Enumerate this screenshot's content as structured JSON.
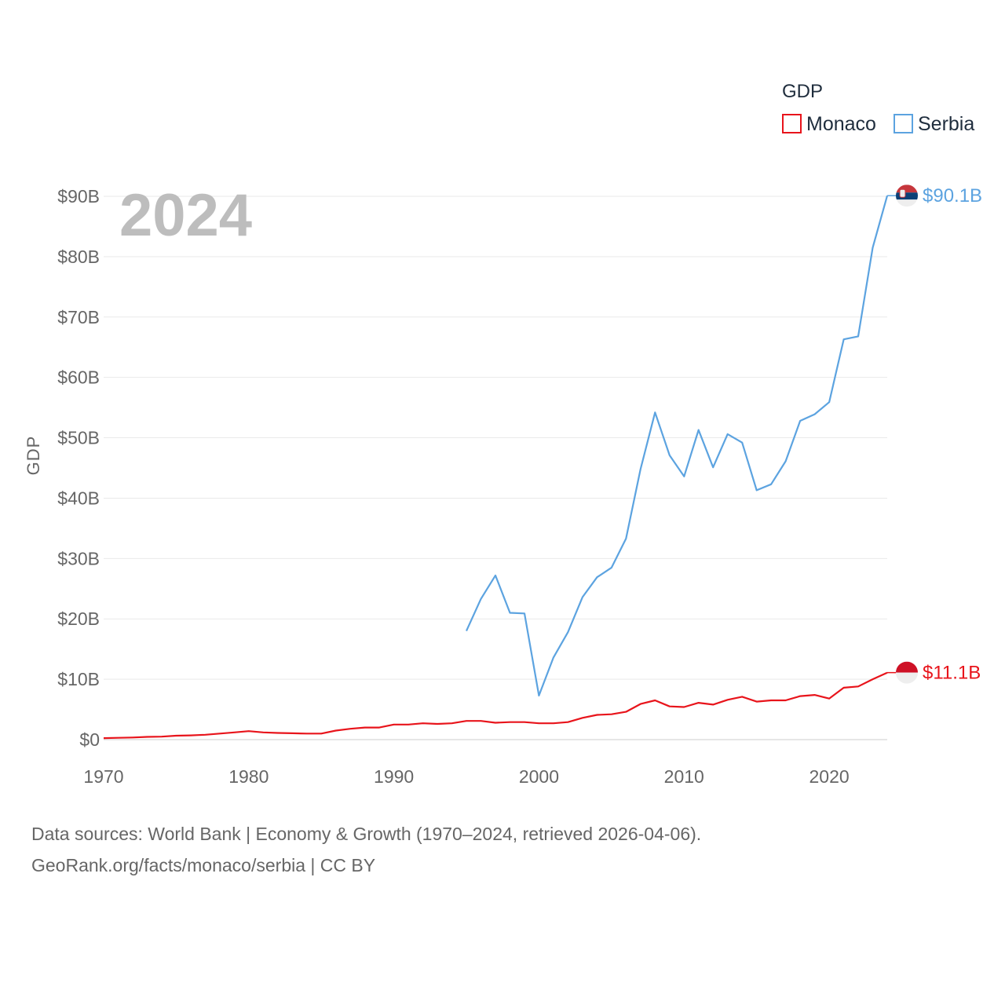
{
  "chart_data": {
    "type": "line",
    "ylabel": "GDP",
    "xlabel": "",
    "year_label": "2024",
    "legend": {
      "title": "GDP",
      "position": "top-right"
    },
    "xlim": [
      1970,
      2024
    ],
    "ylim": [
      0,
      90
    ],
    "x_ticks": [
      1970,
      1980,
      1990,
      2000,
      2010,
      2020
    ],
    "y_ticks": [
      {
        "value": 0,
        "label": "$0"
      },
      {
        "value": 10,
        "label": "$10B"
      },
      {
        "value": 20,
        "label": "$20B"
      },
      {
        "value": 30,
        "label": "$30B"
      },
      {
        "value": 40,
        "label": "$40B"
      },
      {
        "value": 50,
        "label": "$50B"
      },
      {
        "value": 60,
        "label": "$60B"
      },
      {
        "value": 70,
        "label": "$70B"
      },
      {
        "value": 80,
        "label": "$80B"
      },
      {
        "value": 90,
        "label": "$90B"
      }
    ],
    "series": [
      {
        "name": "Monaco",
        "color": "#e8141b",
        "end_label": "$11.1B",
        "start": 1970,
        "values": [
          0.25,
          0.3,
          0.35,
          0.45,
          0.5,
          0.65,
          0.7,
          0.8,
          1.0,
          1.2,
          1.4,
          1.2,
          1.1,
          1.05,
          1.0,
          1.0,
          1.5,
          1.8,
          2.0,
          2.0,
          2.5,
          2.5,
          2.7,
          2.6,
          2.7,
          3.1,
          3.1,
          2.8,
          2.9,
          2.9,
          2.7,
          2.7,
          2.9,
          3.6,
          4.1,
          4.2,
          4.6,
          5.9,
          6.5,
          5.5,
          5.4,
          6.1,
          5.8,
          6.6,
          7.1,
          6.3,
          6.5,
          6.5,
          7.2,
          7.4,
          6.8,
          8.6,
          8.8,
          10.0,
          11.1
        ]
      },
      {
        "name": "Serbia",
        "color": "#5ca3e0",
        "end_label": "$90.1B",
        "start": 1995,
        "values": [
          18.0,
          23.3,
          27.2,
          21.0,
          20.9,
          7.3,
          13.6,
          17.8,
          23.6,
          26.9,
          28.5,
          33.3,
          44.8,
          54.2,
          47.1,
          43.6,
          51.3,
          45.1,
          50.6,
          49.2,
          41.3,
          42.3,
          46.1,
          52.8,
          53.9,
          55.9,
          66.3,
          66.8,
          81.5,
          90.1
        ]
      }
    ]
  },
  "footer": {
    "line1": "Data sources: World Bank | Economy & Growth (1970–2024, retrieved 2026-04-06).",
    "line2": "GeoRank.org/facts/monaco/serbia | CC BY"
  }
}
